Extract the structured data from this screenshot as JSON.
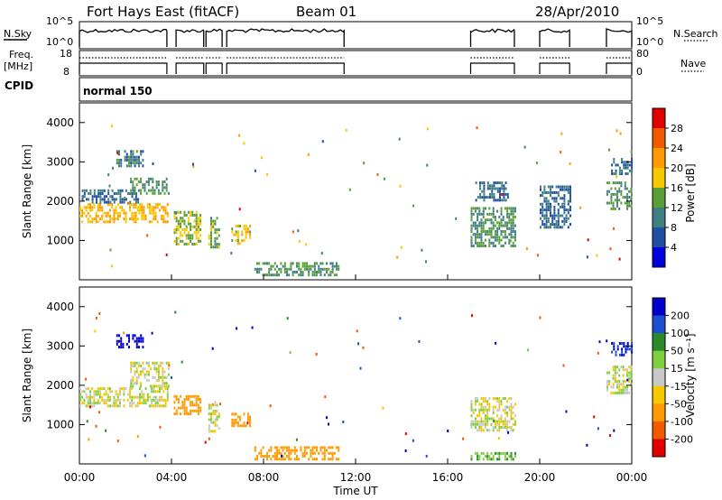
{
  "header": {
    "station": "Fort Hays East (fitACF)",
    "beam": "Beam 01",
    "date": "28/Apr/2010"
  },
  "status_panels": {
    "nsky_label": "N.Sky",
    "nsky_ticks": [
      "10^5",
      "10^0"
    ],
    "nsearch_label": "N.Search",
    "nsearch_ticks": [
      "10^5",
      "10^0"
    ],
    "freq_label_1": "Freq.",
    "freq_label_2": "[MHz]",
    "freq_ticks": [
      "18",
      "8"
    ],
    "nave_label": "Nave",
    "nave_ticks": [
      "80",
      "0"
    ],
    "cpid_label": "CPID",
    "cpid_value": "normal 150"
  },
  "chart_data": [
    {
      "type": "heatmap",
      "name": "power",
      "ylabel": "Slant Range [km]",
      "xlabel": "",
      "xlim": [
        0,
        24
      ],
      "ylim": [
        0,
        4500
      ],
      "yticks": [
        "4000",
        "3000",
        "2000",
        "1000"
      ],
      "colorbar_label": "Power [dB]",
      "colorbar_ticks": [
        "28",
        "24",
        "20",
        "16",
        "12",
        "8",
        "4"
      ],
      "colorbar_colors": [
        "#e00000",
        "#f25a00",
        "#ff9a00",
        "#f5c800",
        "#5a9e3a",
        "#3f7f7f",
        "#1f4fa0",
        "#0000dd"
      ],
      "data_blocks": [
        {
          "t0": 0.0,
          "t1": 3.8,
          "r0": 1450,
          "r1": 1950,
          "level": 18
        },
        {
          "t0": 0.1,
          "t1": 2.6,
          "r0": 1950,
          "r1": 2300,
          "level": 6
        },
        {
          "t0": 1.6,
          "t1": 2.8,
          "r0": 2900,
          "r1": 3300,
          "level": 8
        },
        {
          "t0": 2.2,
          "t1": 3.9,
          "r0": 2200,
          "r1": 2600,
          "level": 10
        },
        {
          "t0": 4.1,
          "t1": 5.3,
          "r0": 900,
          "r1": 1750,
          "level": 14
        },
        {
          "t0": 5.6,
          "t1": 6.1,
          "r0": 800,
          "r1": 1600,
          "level": 12
        },
        {
          "t0": 6.6,
          "t1": 7.4,
          "r0": 950,
          "r1": 1400,
          "level": 16
        },
        {
          "t0": 7.6,
          "t1": 11.3,
          "r0": 100,
          "r1": 450,
          "level": 10
        },
        {
          "t0": 17.0,
          "t1": 18.9,
          "r0": 850,
          "r1": 1850,
          "level": 10
        },
        {
          "t0": 17.2,
          "t1": 18.6,
          "r0": 2000,
          "r1": 2500,
          "level": 6
        },
        {
          "t0": 20.0,
          "t1": 21.3,
          "r0": 1300,
          "r1": 2400,
          "level": 6
        },
        {
          "t0": 22.9,
          "t1": 24.0,
          "r0": 1800,
          "r1": 2500,
          "level": 10
        },
        {
          "t0": 23.1,
          "t1": 24.0,
          "r0": 2700,
          "r1": 3100,
          "level": 6
        }
      ]
    },
    {
      "type": "heatmap",
      "name": "velocity",
      "ylabel": "Slant Range [km]",
      "xlabel": "Time UT",
      "xlim": [
        0,
        24
      ],
      "ylim": [
        0,
        4500
      ],
      "yticks": [
        "4000",
        "3000",
        "2000",
        "1000"
      ],
      "xticks": [
        "00:00",
        "04:00",
        "08:00",
        "12:00",
        "16:00",
        "20:00",
        "00:00"
      ],
      "colorbar_label": "Velocity [m s⁻¹]",
      "colorbar_ticks": [
        "200",
        "100",
        "50",
        "15",
        "-15",
        "-50",
        "-100",
        "-200"
      ],
      "colorbar_colors": [
        "#0000cc",
        "#1f4fd0",
        "#2a8a2a",
        "#7fcf3f",
        "#c8c8c8",
        "#f5c800",
        "#ff9a00",
        "#f25a00",
        "#e00000"
      ],
      "data_blocks": [
        {
          "t0": 0.0,
          "t1": 3.8,
          "r0": 1450,
          "r1": 1950,
          "level": 0
        },
        {
          "t0": 1.6,
          "t1": 2.8,
          "r0": 2950,
          "r1": 3300,
          "level": 180
        },
        {
          "t0": 2.2,
          "t1": 3.9,
          "r0": 2000,
          "r1": 2600,
          "level": 0
        },
        {
          "t0": 4.1,
          "t1": 5.3,
          "r0": 1300,
          "r1": 1750,
          "level": -60
        },
        {
          "t0": 5.6,
          "t1": 6.1,
          "r0": 800,
          "r1": 1600,
          "level": 0
        },
        {
          "t0": 6.6,
          "t1": 7.4,
          "r0": 950,
          "r1": 1300,
          "level": -60
        },
        {
          "t0": 7.6,
          "t1": 11.3,
          "r0": 100,
          "r1": 450,
          "level": -60
        },
        {
          "t0": 17.0,
          "t1": 18.9,
          "r0": 850,
          "r1": 1700,
          "level": 0
        },
        {
          "t0": 17.0,
          "t1": 18.9,
          "r0": 100,
          "r1": 300,
          "level": 30
        },
        {
          "t0": 22.9,
          "t1": 24.0,
          "r0": 1800,
          "r1": 2500,
          "level": 0
        },
        {
          "t0": 23.1,
          "t1": 24.0,
          "r0": 2800,
          "r1": 3100,
          "level": 150
        }
      ]
    }
  ],
  "operating_intervals": [
    [
      0.0,
      3.8
    ],
    [
      4.2,
      5.4
    ],
    [
      5.5,
      6.2
    ],
    [
      6.4,
      11.5
    ],
    [
      17.0,
      18.9
    ],
    [
      20.0,
      21.3
    ],
    [
      22.9,
      24.0
    ]
  ]
}
